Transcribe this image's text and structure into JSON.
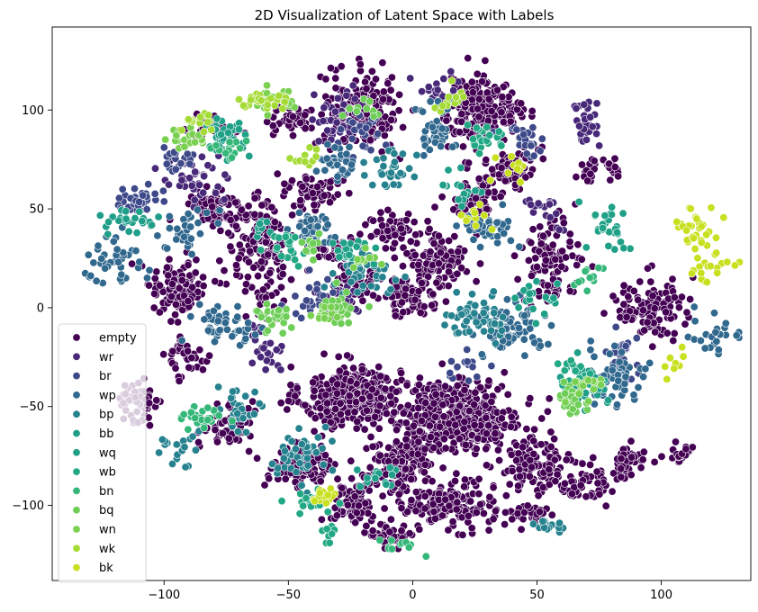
{
  "chart_data": {
    "type": "scatter",
    "title": "2D Visualization of Latent Space with Labels",
    "xlabel": "",
    "ylabel": "",
    "xlim": [
      -145,
      136
    ],
    "ylim": [
      -138,
      142
    ],
    "xticks": [
      -100,
      -50,
      0,
      50,
      100
    ],
    "yticks": [
      -100,
      -50,
      0,
      50,
      100
    ],
    "xtick_labels": [
      "−100",
      "−50",
      "0",
      "50",
      "100"
    ],
    "ytick_labels": [
      "−100",
      "−50",
      "0",
      "50",
      "100"
    ],
    "grid": false,
    "legend_position": "bottom-left",
    "series": [
      {
        "name": "empty",
        "color": "#440154",
        "clusters": [
          [
            -25,
            -45,
            18,
            14,
            380
          ],
          [
            20,
            -55,
            22,
            16,
            420
          ],
          [
            -5,
            -80,
            12,
            14,
            160
          ],
          [
            15,
            -100,
            16,
            10,
            160
          ],
          [
            -20,
            100,
            14,
            18,
            180
          ],
          [
            25,
            100,
            14,
            16,
            170
          ],
          [
            -60,
            30,
            12,
            25,
            170
          ],
          [
            -95,
            10,
            12,
            14,
            110
          ],
          [
            -80,
            50,
            10,
            10,
            80
          ],
          [
            -110,
            -50,
            8,
            12,
            55
          ],
          [
            -45,
            -80,
            14,
            10,
            110
          ],
          [
            -25,
            -100,
            10,
            10,
            70
          ],
          [
            50,
            -80,
            14,
            12,
            110
          ],
          [
            85,
            -80,
            10,
            8,
            50
          ],
          [
            110,
            -75,
            8,
            6,
            30
          ],
          [
            -90,
            -25,
            8,
            10,
            40
          ],
          [
            -80,
            90,
            10,
            6,
            35
          ],
          [
            55,
            25,
            10,
            18,
            100
          ],
          [
            10,
            25,
            12,
            14,
            110
          ],
          [
            40,
            70,
            10,
            10,
            70
          ],
          [
            -10,
            40,
            8,
            8,
            50
          ],
          [
            -40,
            60,
            10,
            8,
            60
          ],
          [
            95,
            0,
            14,
            14,
            110
          ],
          [
            0,
            5,
            12,
            10,
            60
          ],
          [
            70,
            -90,
            10,
            8,
            40
          ],
          [
            -75,
            -60,
            10,
            10,
            55
          ],
          [
            45,
            -105,
            8,
            6,
            30
          ],
          [
            -30,
            30,
            8,
            6,
            40
          ],
          [
            -10,
            -115,
            8,
            6,
            40
          ],
          [
            75,
            70,
            10,
            6,
            30
          ],
          [
            -50,
            95,
            10,
            6,
            40
          ],
          [
            35,
            100,
            10,
            8,
            50
          ],
          [
            -20,
            15,
            10,
            8,
            50
          ],
          [
            25,
            55,
            10,
            8,
            50
          ]
        ]
      },
      {
        "name": "wr",
        "color": "#482878",
        "clusters": [
          [
            -30,
            95,
            10,
            12,
            40
          ],
          [
            70,
            95,
            6,
            12,
            30
          ],
          [
            -85,
            65,
            12,
            12,
            40
          ],
          [
            -30,
            5,
            10,
            8,
            25
          ],
          [
            55,
            50,
            8,
            8,
            20
          ],
          [
            -60,
            -20,
            10,
            10,
            25
          ],
          [
            10,
            110,
            8,
            8,
            15
          ]
        ]
      },
      {
        "name": "br",
        "color": "#3e4989",
        "clusters": [
          [
            -110,
            55,
            8,
            6,
            35
          ],
          [
            -95,
            75,
            6,
            6,
            20
          ],
          [
            -40,
            5,
            10,
            10,
            30
          ],
          [
            45,
            85,
            8,
            8,
            25
          ],
          [
            85,
            -25,
            8,
            10,
            30
          ],
          [
            -20,
            90,
            8,
            10,
            25
          ],
          [
            20,
            -30,
            8,
            8,
            15
          ]
        ]
      },
      {
        "name": "wp",
        "color": "#31688e",
        "clusters": [
          [
            -120,
            25,
            10,
            12,
            40
          ],
          [
            -90,
            40,
            10,
            10,
            30
          ],
          [
            -75,
            -10,
            12,
            10,
            50
          ],
          [
            -40,
            40,
            10,
            8,
            40
          ],
          [
            40,
            -10,
            14,
            10,
            80
          ],
          [
            80,
            -35,
            12,
            12,
            60
          ],
          [
            30,
            40,
            10,
            8,
            40
          ],
          [
            10,
            90,
            8,
            12,
            40
          ],
          [
            -30,
            75,
            8,
            10,
            30
          ],
          [
            120,
            -15,
            8,
            12,
            25
          ]
        ]
      },
      {
        "name": "bp",
        "color": "#26828e",
        "clusters": [
          [
            -45,
            -75,
            12,
            10,
            45
          ],
          [
            -70,
            -50,
            10,
            10,
            30
          ],
          [
            25,
            -5,
            12,
            10,
            50
          ],
          [
            -20,
            15,
            10,
            10,
            40
          ],
          [
            -10,
            70,
            10,
            10,
            30
          ],
          [
            -95,
            -70,
            8,
            10,
            20
          ],
          [
            55,
            -110,
            6,
            4,
            15
          ]
        ]
      },
      {
        "name": "bb",
        "color": "#1f9e89",
        "clusters": [
          [
            70,
            -40,
            10,
            10,
            35
          ],
          [
            -75,
            85,
            8,
            8,
            25
          ],
          [
            -15,
            -85,
            8,
            6,
            15
          ],
          [
            -115,
            45,
            10,
            6,
            25
          ],
          [
            20,
            60,
            8,
            8,
            15
          ],
          [
            -60,
            40,
            6,
            6,
            10
          ]
        ]
      },
      {
        "name": "wq",
        "color": "#1fa187",
        "clusters": [
          [
            80,
            40,
            8,
            10,
            30
          ],
          [
            -25,
            30,
            8,
            8,
            20
          ],
          [
            50,
            5,
            8,
            8,
            20
          ],
          [
            -75,
            90,
            6,
            6,
            15
          ]
        ]
      },
      {
        "name": "wb",
        "color": "#22a884",
        "clusters": [
          [
            30,
            85,
            8,
            8,
            25
          ],
          [
            -40,
            -100,
            8,
            6,
            20
          ],
          [
            -50,
            30,
            8,
            8,
            20
          ],
          [
            65,
            -35,
            6,
            8,
            15
          ],
          [
            -35,
            -115,
            4,
            4,
            8
          ]
        ]
      },
      {
        "name": "bn",
        "color": "#35b779",
        "clusters": [
          [
            -85,
            -55,
            8,
            6,
            25
          ],
          [
            -5,
            -120,
            6,
            4,
            12
          ],
          [
            -75,
            80,
            6,
            6,
            15
          ],
          [
            70,
            15,
            6,
            6,
            12
          ]
        ]
      },
      {
        "name": "bq",
        "color": "#6ece58",
        "clusters": [
          [
            -30,
            0,
            8,
            8,
            30
          ],
          [
            -55,
            -5,
            8,
            6,
            25
          ],
          [
            65,
            -45,
            6,
            10,
            25
          ],
          [
            -20,
            100,
            6,
            6,
            10
          ],
          [
            -40,
            30,
            6,
            6,
            10
          ]
        ]
      },
      {
        "name": "wn",
        "color": "#7ad151",
        "clusters": [
          [
            -90,
            85,
            8,
            5,
            20
          ],
          [
            -55,
            105,
            8,
            6,
            20
          ],
          [
            70,
            -40,
            6,
            6,
            15
          ],
          [
            -35,
            -5,
            6,
            6,
            12
          ],
          [
            -20,
            25,
            6,
            6,
            10
          ]
        ]
      },
      {
        "name": "wk",
        "color": "#a5db36",
        "clusters": [
          [
            -60,
            105,
            10,
            4,
            25
          ],
          [
            -85,
            95,
            6,
            6,
            15
          ],
          [
            15,
            105,
            8,
            6,
            12
          ],
          [
            -45,
            75,
            6,
            6,
            10
          ]
        ]
      },
      {
        "name": "bk",
        "color": "#c8e020",
        "clusters": [
          [
            115,
            40,
            8,
            10,
            30
          ],
          [
            120,
            20,
            8,
            6,
            20
          ],
          [
            -35,
            -95,
            6,
            4,
            15
          ],
          [
            40,
            70,
            6,
            6,
            10
          ],
          [
            105,
            -25,
            4,
            8,
            8
          ],
          [
            25,
            45,
            6,
            6,
            10
          ]
        ]
      }
    ]
  }
}
